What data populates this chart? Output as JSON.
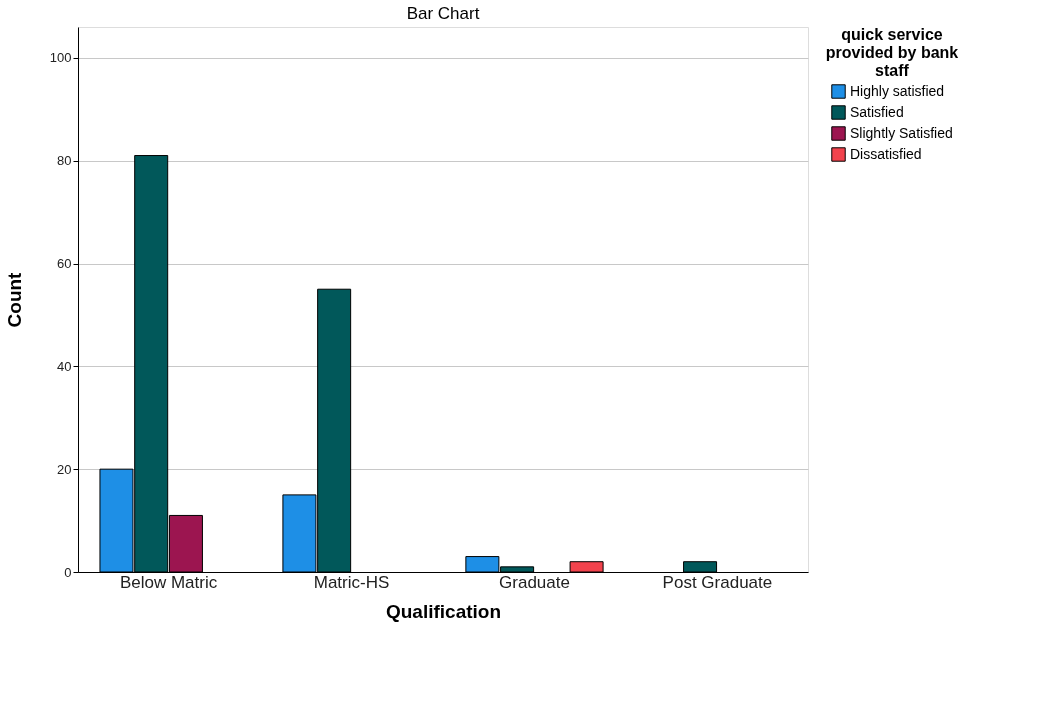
{
  "chart_data": {
    "type": "bar",
    "title": "Bar Chart",
    "xlabel": "Qualification",
    "ylabel": "Count",
    "legend_title": "quick service provided by bank staff",
    "categories": [
      "Below Matric",
      "Matric-HS",
      "Graduate",
      "Post Graduate"
    ],
    "series": [
      {
        "name": "Highly satisfied",
        "color": "#1e8fe6",
        "values": [
          20,
          15,
          3,
          null
        ]
      },
      {
        "name": "Satisfied",
        "color": "#01585a",
        "values": [
          81,
          55,
          1,
          2
        ]
      },
      {
        "name": "Slightly Satisfied",
        "color": "#9c1550",
        "values": [
          11,
          null,
          null,
          null
        ]
      },
      {
        "name": "Dissatisfied",
        "color": "#f2434d",
        "values": [
          null,
          null,
          2,
          null
        ]
      }
    ],
    "ylim": [
      0,
      106
    ],
    "yticks": [
      0,
      20,
      40,
      60,
      80,
      100
    ],
    "grid": "y",
    "legend": "top right"
  }
}
